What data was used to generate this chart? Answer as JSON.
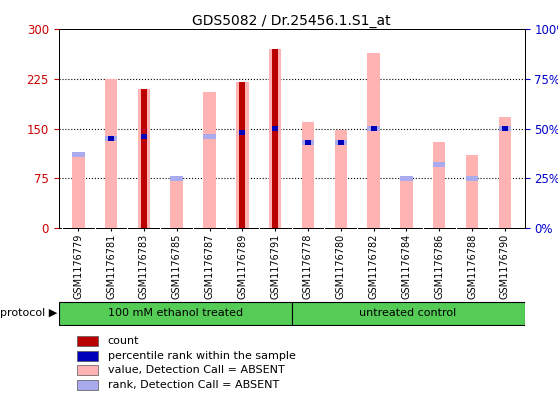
{
  "title": "GDS5082 / Dr.25456.1.S1_at",
  "samples": [
    "GSM1176779",
    "GSM1176781",
    "GSM1176783",
    "GSM1176785",
    "GSM1176787",
    "GSM1176789",
    "GSM1176791",
    "GSM1176778",
    "GSM1176780",
    "GSM1176782",
    "GSM1176784",
    "GSM1176786",
    "GSM1176788",
    "GSM1176790"
  ],
  "pink_values": [
    110,
    225,
    210,
    78,
    205,
    220,
    270,
    160,
    148,
    265,
    78,
    130,
    110,
    168
  ],
  "red_values": [
    0,
    0,
    210,
    0,
    0,
    220,
    270,
    0,
    0,
    0,
    0,
    0,
    0,
    0
  ],
  "blue_rank_pct": [
    0,
    45,
    46,
    0,
    0,
    48,
    50,
    43,
    43,
    50,
    0,
    0,
    0,
    50
  ],
  "lbrank_pct": [
    37,
    45,
    0,
    25,
    46,
    0,
    0,
    43,
    43,
    50,
    25,
    32,
    25,
    50
  ],
  "group1_label": "100 mM ethanol treated",
  "group2_label": "untreated control",
  "group1_count": 7,
  "group2_count": 7,
  "ylim_left": [
    0,
    300
  ],
  "ylim_right": [
    0,
    100
  ],
  "yticks_left": [
    0,
    75,
    150,
    225,
    300
  ],
  "yticks_right": [
    0,
    25,
    50,
    75,
    100
  ],
  "left_tick_labels": [
    "0",
    "75",
    "150",
    "225",
    "300"
  ],
  "right_tick_labels": [
    "0%",
    "25%",
    "50%",
    "75%",
    "100%"
  ],
  "left_color": "#cc0000",
  "right_color": "#0000cc",
  "pink_color": "#ffb3b3",
  "red_color": "#bb0000",
  "blue_color": "#0000bb",
  "lightblue_color": "#aaaaee",
  "group_bg_color": "#55cc55",
  "axis_bg_color": "#cccccc",
  "plot_bg_color": "#ffffff",
  "legend_items": [
    "count",
    "percentile rank within the sample",
    "value, Detection Call = ABSENT",
    "rank, Detection Call = ABSENT"
  ],
  "legend_colors": [
    "#bb0000",
    "#0000bb",
    "#ffb3b3",
    "#aaaaee"
  ]
}
